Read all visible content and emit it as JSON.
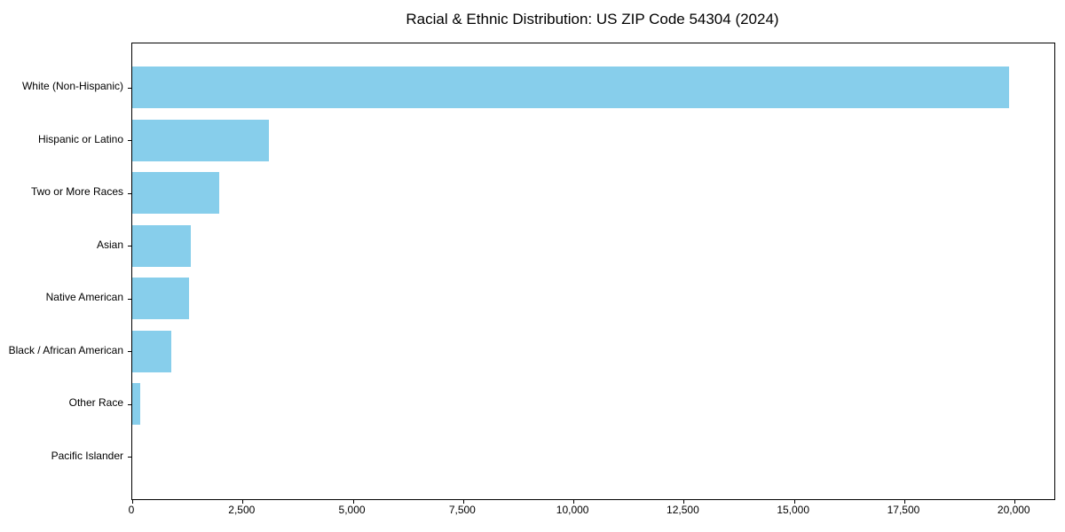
{
  "chart_data": {
    "type": "bar",
    "orientation": "horizontal",
    "title": "Racial & Ethnic Distribution: US ZIP Code 54304 (2024)",
    "categories": [
      "White (Non-Hispanic)",
      "Hispanic or Latino",
      "Two or More Races",
      "Asian",
      "Native American",
      "Black / African American",
      "Other Race",
      "Pacific Islander"
    ],
    "values": [
      19880,
      3100,
      1970,
      1330,
      1280,
      885,
      175,
      0
    ],
    "xlabel": "",
    "ylabel": "",
    "xlim": [
      0,
      20900
    ],
    "x_ticks": [
      0,
      2500,
      5000,
      7500,
      10000,
      12500,
      15000,
      17500,
      20000
    ],
    "x_tick_labels": [
      "0",
      "2,500",
      "5,000",
      "7,500",
      "10,000",
      "12,500",
      "15,000",
      "17,500",
      "20,000"
    ],
    "bar_color": "#87CEEB",
    "spine_color": "#000000",
    "grid": false,
    "legend": "none"
  }
}
